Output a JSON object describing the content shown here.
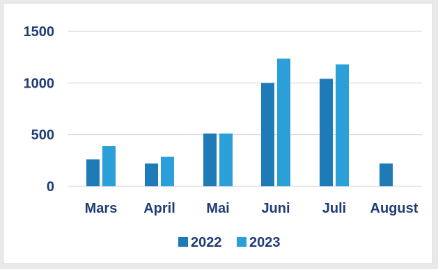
{
  "chart_data": {
    "type": "bar",
    "categories": [
      "Mars",
      "April",
      "Mai",
      "Juni",
      "Juli",
      "August"
    ],
    "series": [
      {
        "name": "2022",
        "color": "#1f7bb8",
        "values": [
          260,
          220,
          510,
          1000,
          1040,
          220
        ]
      },
      {
        "name": "2023",
        "color": "#2a9fd8",
        "values": [
          390,
          285,
          510,
          1235,
          1180,
          null
        ]
      }
    ],
    "yticks": [
      "0",
      "500",
      "1000",
      "1500"
    ],
    "ylim": [
      0,
      1500
    ],
    "grid": true,
    "legend": "bottom"
  }
}
